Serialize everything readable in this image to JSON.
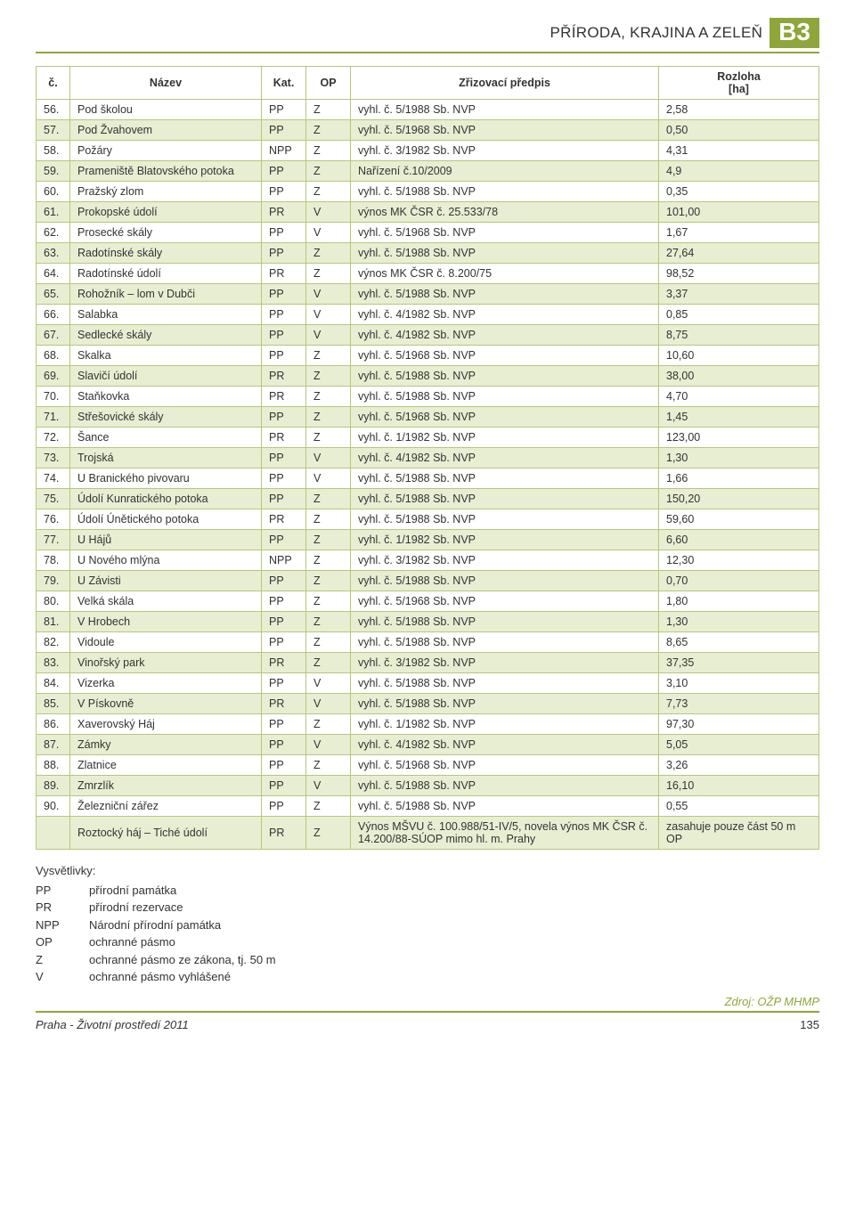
{
  "header": {
    "title": "PŘÍRODA, KRAJINA A ZELEŇ",
    "badge": "B3"
  },
  "table": {
    "columns": [
      "č.",
      "Název",
      "Kat.",
      "OP",
      "Zřizovací předpis",
      "Rozloha [ha]"
    ],
    "col_header_area_line1": "Rozloha",
    "col_header_area_line2": "[ha]",
    "rows": [
      [
        "56.",
        "Pod školou",
        "PP",
        "Z",
        "vyhl. č. 5/1988 Sb. NVP",
        "2,58"
      ],
      [
        "57.",
        "Pod Žvahovem",
        "PP",
        "Z",
        "vyhl. č. 5/1968 Sb. NVP",
        "0,50"
      ],
      [
        "58.",
        "Požáry",
        "NPP",
        "Z",
        "vyhl. č. 3/1982 Sb. NVP",
        "4,31"
      ],
      [
        "59.",
        "Prameniště Blatovského potoka",
        "PP",
        "Z",
        "Nařízení č.10/2009",
        "4,9"
      ],
      [
        "60.",
        "Pražský zlom",
        "PP",
        "Z",
        "vyhl. č. 5/1988 Sb. NVP",
        "0,35"
      ],
      [
        "61.",
        "Prokopské údolí",
        "PR",
        "V",
        "výnos MK ČSR č. 25.533/78",
        "101,00"
      ],
      [
        "62.",
        "Prosecké skály",
        "PP",
        "V",
        "vyhl. č. 5/1968 Sb. NVP",
        "1,67"
      ],
      [
        "63.",
        "Radotínské skály",
        "PP",
        "Z",
        "vyhl. č. 5/1988 Sb. NVP",
        "27,64"
      ],
      [
        "64.",
        "Radotínské údolí",
        "PR",
        "Z",
        "výnos MK ČSR č. 8.200/75",
        "98,52"
      ],
      [
        "65.",
        "Rohožník – lom v Dubči",
        "PP",
        "V",
        "vyhl. č. 5/1988 Sb. NVP",
        "3,37"
      ],
      [
        "66.",
        "Salabka",
        "PP",
        "V",
        "vyhl. č. 4/1982 Sb. NVP",
        "0,85"
      ],
      [
        "67.",
        "Sedlecké skály",
        "PP",
        "V",
        "vyhl. č. 4/1982 Sb. NVP",
        "8,75"
      ],
      [
        "68.",
        "Skalka",
        "PP",
        "Z",
        "vyhl. č. 5/1968 Sb. NVP",
        "10,60"
      ],
      [
        "69.",
        "Slavičí údolí",
        "PR",
        "Z",
        "vyhl. č. 5/1988 Sb. NVP",
        "38,00"
      ],
      [
        "70.",
        "Staňkovka",
        "PR",
        "Z",
        "vyhl. č. 5/1988 Sb. NVP",
        "4,70"
      ],
      [
        "71.",
        "Střešovické skály",
        "PP",
        "Z",
        "vyhl. č. 5/1968 Sb. NVP",
        "1,45"
      ],
      [
        "72.",
        "Šance",
        "PR",
        "Z",
        "vyhl. č. 1/1982 Sb. NVP",
        "123,00"
      ],
      [
        "73.",
        "Trojská",
        "PP",
        "V",
        "vyhl. č. 4/1982 Sb. NVP",
        "1,30"
      ],
      [
        "74.",
        "U Branického pivovaru",
        "PP",
        "V",
        "vyhl. č. 5/1988 Sb. NVP",
        "1,66"
      ],
      [
        "75.",
        "Údolí Kunratického potoka",
        "PP",
        "Z",
        "vyhl. č. 5/1988 Sb. NVP",
        "150,20"
      ],
      [
        "76.",
        "Údolí Únětického potoka",
        "PR",
        "Z",
        "vyhl. č. 5/1988 Sb. NVP",
        "59,60"
      ],
      [
        "77.",
        "U Hájů",
        "PP",
        "Z",
        "vyhl. č. 1/1982 Sb. NVP",
        "6,60"
      ],
      [
        "78.",
        "U Nového mlýna",
        "NPP",
        "Z",
        "vyhl. č. 3/1982 Sb. NVP",
        "12,30"
      ],
      [
        "79.",
        "U Závisti",
        "PP",
        "Z",
        "vyhl. č. 5/1988 Sb. NVP",
        "0,70"
      ],
      [
        "80.",
        "Velká skála",
        "PP",
        "Z",
        "vyhl. č. 5/1968 Sb. NVP",
        "1,80"
      ],
      [
        "81.",
        "V Hrobech",
        "PP",
        "Z",
        "vyhl. č. 5/1988 Sb. NVP",
        "1,30"
      ],
      [
        "82.",
        "Vidoule",
        "PP",
        "Z",
        "vyhl. č. 5/1988 Sb. NVP",
        "8,65"
      ],
      [
        "83.",
        "Vinořský park",
        "PR",
        "Z",
        "vyhl. č. 3/1982 Sb. NVP",
        "37,35"
      ],
      [
        "84.",
        "Vizerka",
        "PP",
        "V",
        "vyhl. č. 5/1988 Sb. NVP",
        "3,10"
      ],
      [
        "85.",
        "V Pískovně",
        "PR",
        "V",
        "vyhl. č. 5/1988 Sb. NVP",
        "7,73"
      ],
      [
        "86.",
        "Xaverovský Háj",
        "PP",
        "Z",
        "vyhl. č. 1/1982 Sb. NVP",
        "97,30"
      ],
      [
        "87.",
        "Zámky",
        "PP",
        "V",
        "vyhl. č. 4/1982 Sb. NVP",
        "5,05"
      ],
      [
        "88.",
        "Zlatnice",
        "PP",
        "Z",
        "vyhl. č. 5/1968 Sb. NVP",
        "3,26"
      ],
      [
        "89.",
        "Zmrzlík",
        "PP",
        "V",
        "vyhl. č. 5/1988 Sb. NVP",
        "16,10"
      ],
      [
        "90.",
        "Železniční zářez",
        "PP",
        "Z",
        "vyhl. č. 5/1988 Sb. NVP",
        "0,55"
      ],
      [
        "",
        "Roztocký háj – Tiché údolí",
        "PR",
        "Z",
        "Výnos MŠVU č. 100.988/51-IV/5, novela výnos MK ČSR č. 14.200/88-SÚOP mimo hl. m. Prahy",
        "zasahuje pouze část 50 m OP"
      ]
    ]
  },
  "legend": {
    "title": "Vysvětlivky:",
    "items": [
      [
        "PP",
        "přírodní památka"
      ],
      [
        "PR",
        "přírodní rezervace"
      ],
      [
        "NPP",
        "Národní přírodní památka"
      ],
      [
        "OP",
        "ochranné pásmo"
      ],
      [
        "Z",
        "ochranné pásmo ze zákona, tj. 50 m"
      ],
      [
        "V",
        "ochranné pásmo vyhlášené"
      ]
    ]
  },
  "source": "Zdroj: OŽP MHMP",
  "footer": {
    "left": "Praha - Životní prostředí 2011",
    "page": "135"
  },
  "colors": {
    "accent": "#8fa63b",
    "row_alt": "#e8eed2",
    "border": "#b7c77a"
  }
}
